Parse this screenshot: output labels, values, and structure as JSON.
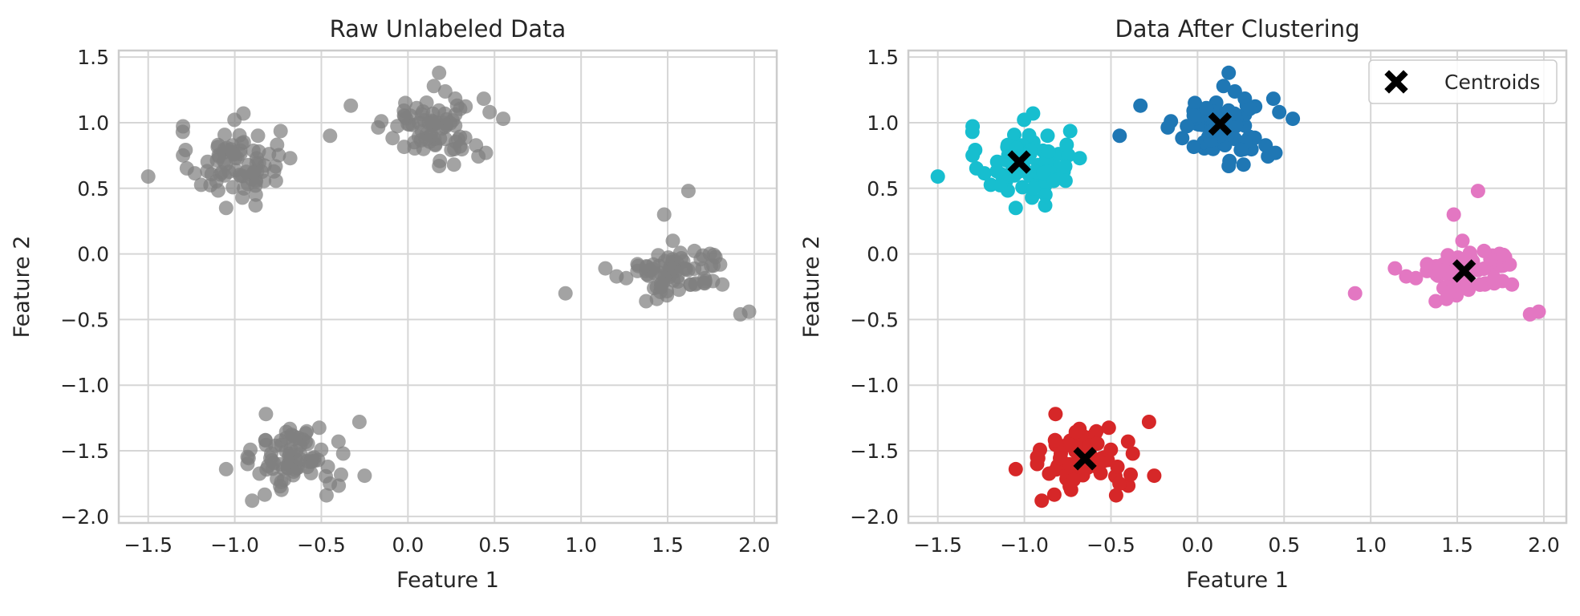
{
  "chart_data": [
    {
      "type": "scatter",
      "title": "Raw Unlabeled Data",
      "xlabel": "Feature 1",
      "ylabel": "Feature 2",
      "xlim": [
        -1.67,
        2.13
      ],
      "ylim": [
        -2.05,
        1.55
      ],
      "xticks": [
        -1.5,
        -1.0,
        -0.5,
        0.0,
        0.5,
        1.0,
        1.5,
        2.0
      ],
      "yticks": [
        -2.0,
        -1.5,
        -1.0,
        -0.5,
        0.0,
        0.5,
        1.0,
        1.5
      ],
      "grid": true,
      "point_color": "#808080",
      "clusters": [
        {
          "center": [
            -1.0,
            0.7
          ],
          "spread": [
            0.13,
            0.14
          ],
          "n": 75,
          "extra": [
            [
              -1.5,
              0.59
            ],
            [
              -1.3,
              0.93
            ],
            [
              -0.95,
              1.07
            ],
            [
              -1.05,
              0.35
            ],
            [
              -0.88,
              0.37
            ],
            [
              -0.68,
              0.73
            ]
          ]
        },
        {
          "center": [
            0.15,
            0.98
          ],
          "spread": [
            0.14,
            0.13
          ],
          "n": 75,
          "extra": [
            [
              -0.45,
              0.9
            ],
            [
              -0.33,
              1.13
            ],
            [
              0.18,
              1.38
            ],
            [
              0.55,
              1.03
            ],
            [
              0.45,
              0.77
            ],
            [
              0.18,
              0.67
            ]
          ]
        },
        {
          "center": [
            1.55,
            -0.13
          ],
          "spread": [
            0.15,
            0.1
          ],
          "n": 75,
          "extra": [
            [
              0.91,
              -0.3
            ],
            [
              1.14,
              -0.11
            ],
            [
              1.62,
              0.48
            ],
            [
              1.48,
              0.3
            ],
            [
              1.97,
              -0.44
            ],
            [
              1.92,
              -0.46
            ]
          ]
        },
        {
          "center": [
            -0.65,
            -1.56
          ],
          "spread": [
            0.12,
            0.12
          ],
          "n": 75,
          "extra": [
            [
              -0.82,
              -1.22
            ],
            [
              -0.28,
              -1.28
            ],
            [
              -0.25,
              -1.69
            ],
            [
              -0.9,
              -1.88
            ],
            [
              -0.47,
              -1.84
            ],
            [
              -1.05,
              -1.64
            ]
          ]
        }
      ]
    },
    {
      "type": "scatter",
      "title": "Data After Clustering",
      "xlabel": "Feature 1",
      "ylabel": "Feature 2",
      "xlim": [
        -1.67,
        2.13
      ],
      "ylim": [
        -2.05,
        1.55
      ],
      "xticks": [
        -1.5,
        -1.0,
        -0.5,
        0.0,
        0.5,
        1.0,
        1.5,
        2.0
      ],
      "yticks": [
        -2.0,
        -1.5,
        -1.0,
        -0.5,
        0.0,
        0.5,
        1.0,
        1.5
      ],
      "grid": true,
      "legend": {
        "placement": "top-right",
        "label": "Centroids"
      },
      "cluster_colors": [
        "#17becf",
        "#1f77b4",
        "#e377c2",
        "#d62728"
      ],
      "centroids": [
        [
          -1.03,
          0.7
        ],
        [
          0.13,
          0.99
        ],
        [
          1.54,
          -0.13
        ],
        [
          -0.65,
          -1.56
        ]
      ]
    }
  ]
}
